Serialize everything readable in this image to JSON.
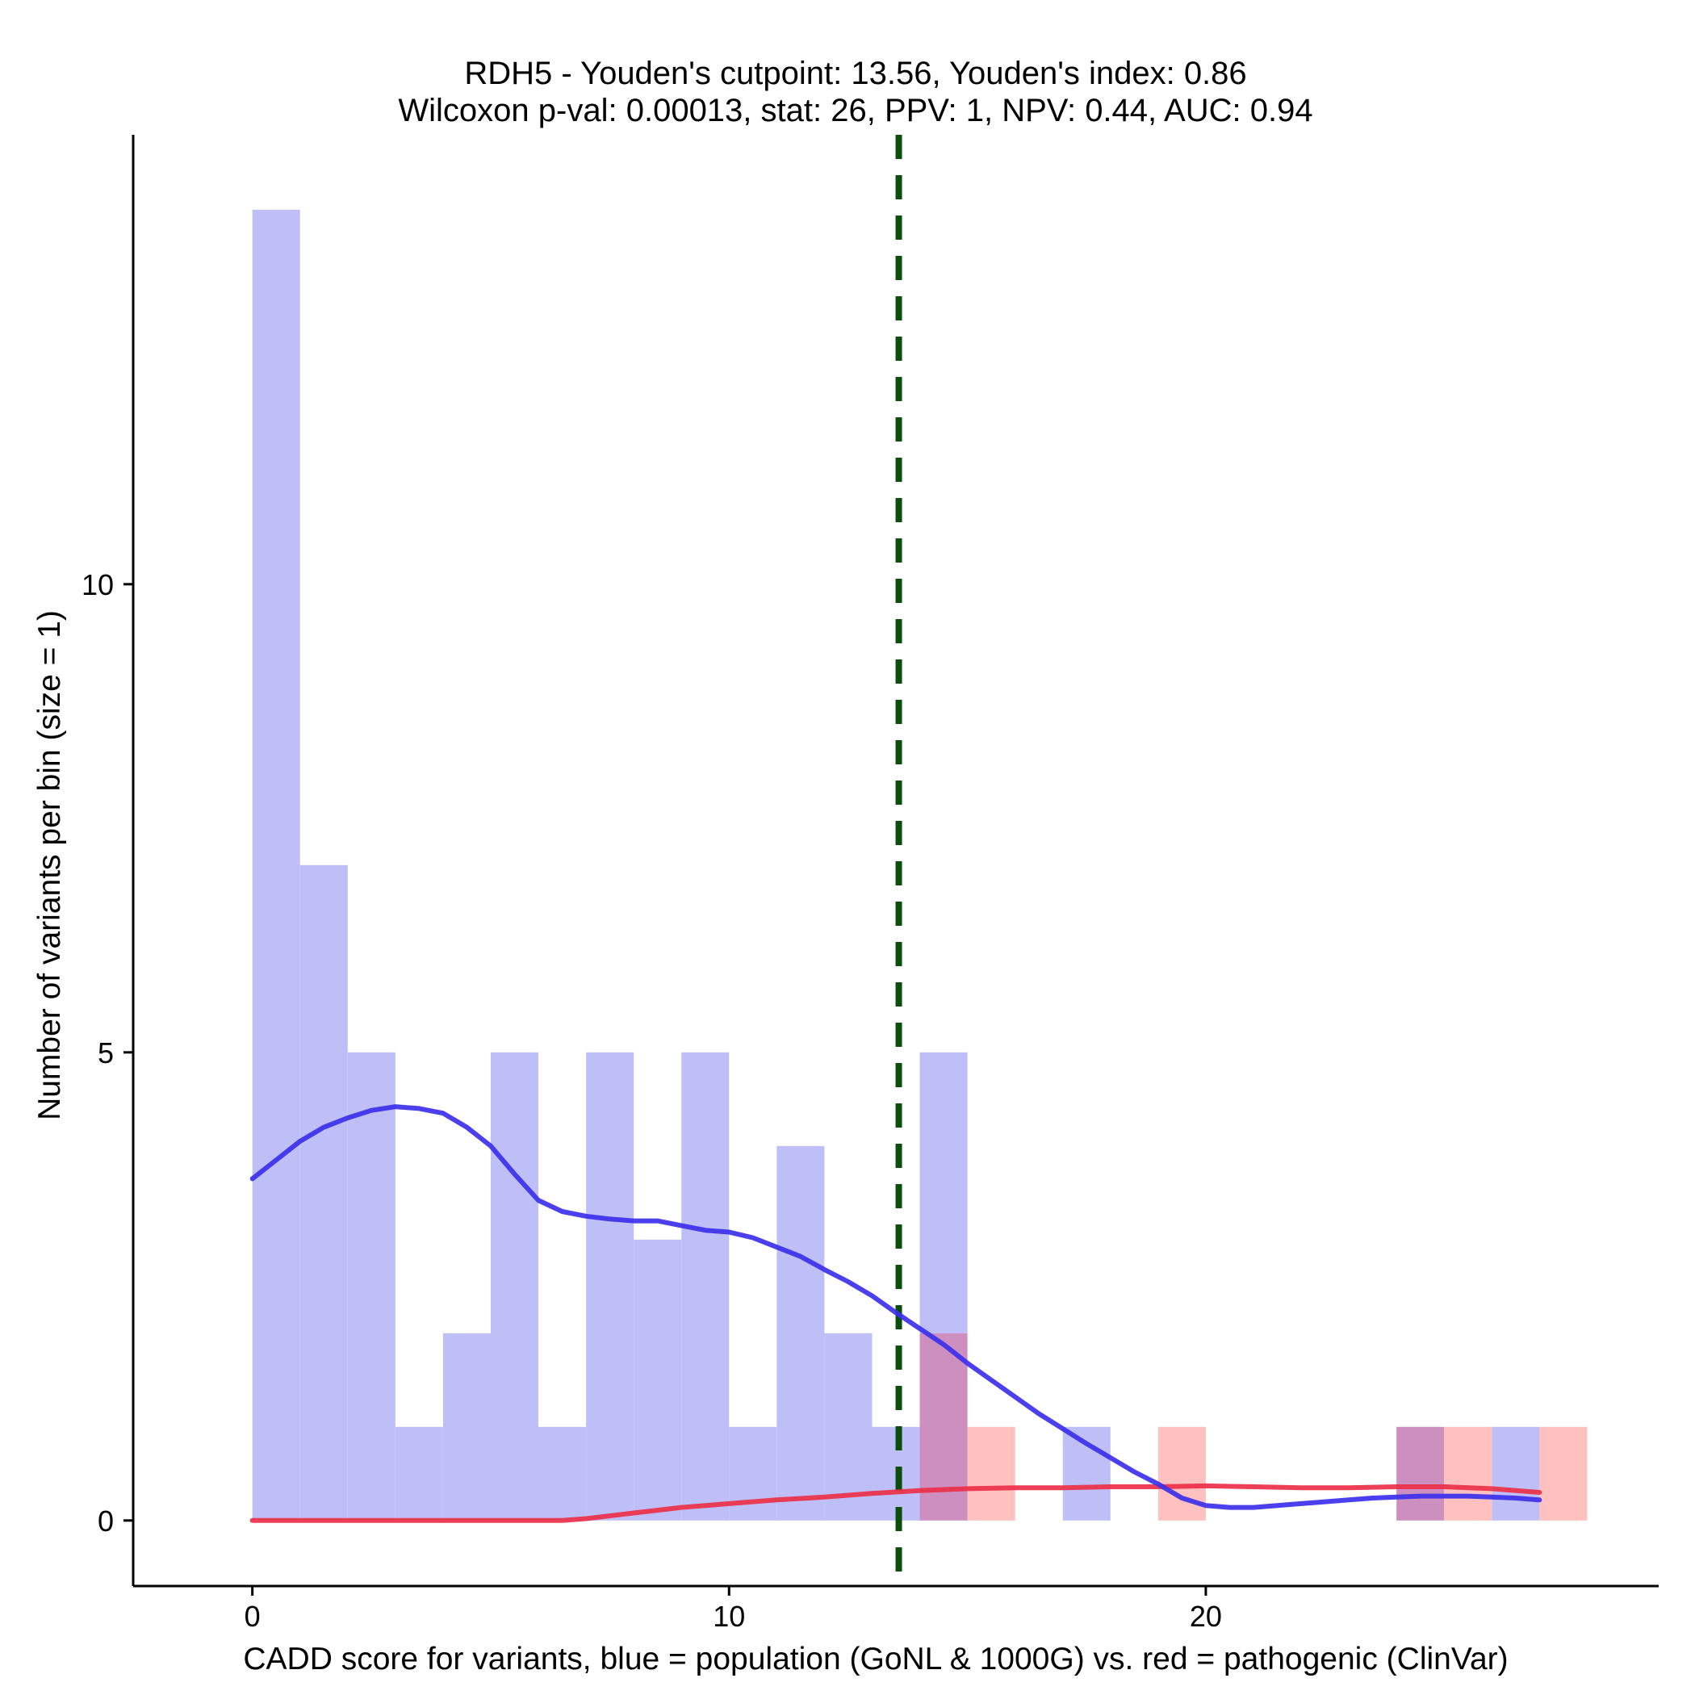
{
  "chart_data": {
    "type": "histogram",
    "title_line1": "RDH5 - Youden's cutpoint: 13.56, Youden's index: 0.86",
    "title_line2": "Wilcoxon p-val: 0.00013, stat: 26, PPV: 1, NPV: 0.44, AUC: 0.94",
    "xlabel": "CADD score for variants, blue = population (GoNL & 1000G) vs. red = pathogenic (ClinVar)",
    "ylabel": "Number of variants per bin (size = 1)",
    "xlim": [
      -2.5,
      29.5
    ],
    "ylim": [
      -0.7,
      14.8
    ],
    "x_ticks": [
      0,
      10,
      20
    ],
    "y_ticks": [
      0,
      5,
      10
    ],
    "bin_width": 1,
    "cutpoint": 13.56,
    "colors": {
      "population_bar": "#bfbff8",
      "pathogenic_bar": "#ffc0c0",
      "overlap_bar": "#cc8fc0",
      "population_line": "#3b30ec",
      "pathogenic_line": "#ec3048",
      "cutpoint_line": "#0b4d0b"
    },
    "series": [
      {
        "name": "population (GoNL & 1000G)",
        "bins": [
          {
            "start": 0,
            "count": 14
          },
          {
            "start": 1,
            "count": 7
          },
          {
            "start": 2,
            "count": 5
          },
          {
            "start": 3,
            "count": 1
          },
          {
            "start": 4,
            "count": 2
          },
          {
            "start": 5,
            "count": 5
          },
          {
            "start": 6,
            "count": 1
          },
          {
            "start": 7,
            "count": 5
          },
          {
            "start": 8,
            "count": 3
          },
          {
            "start": 9,
            "count": 5
          },
          {
            "start": 10,
            "count": 1
          },
          {
            "start": 11,
            "count": 4
          },
          {
            "start": 12,
            "count": 2
          },
          {
            "start": 13,
            "count": 1
          },
          {
            "start": 14,
            "count": 5
          },
          {
            "start": 17,
            "count": 1
          },
          {
            "start": 24,
            "count": 1
          },
          {
            "start": 26,
            "count": 1
          }
        ],
        "density_x": [
          0,
          0.5,
          1,
          1.5,
          2,
          2.5,
          3,
          3.5,
          4,
          4.5,
          5,
          5.5,
          6,
          6.5,
          7,
          7.5,
          8,
          8.5,
          9,
          9.5,
          10,
          10.5,
          11,
          11.5,
          12,
          12.5,
          13,
          13.5,
          14,
          14.5,
          15,
          15.5,
          16,
          16.5,
          17,
          17.5,
          18,
          18.5,
          19,
          19.5,
          20,
          20.5,
          21,
          21.5,
          22,
          22.5,
          23,
          23.5,
          24,
          24.5,
          25,
          25.5,
          26,
          26.5,
          27
        ],
        "density_y": [
          3.65,
          3.85,
          4.05,
          4.2,
          4.3,
          4.38,
          4.42,
          4.4,
          4.35,
          4.2,
          4.0,
          3.7,
          3.42,
          3.3,
          3.25,
          3.22,
          3.2,
          3.2,
          3.15,
          3.1,
          3.08,
          3.02,
          2.92,
          2.82,
          2.68,
          2.55,
          2.4,
          2.22,
          2.05,
          1.88,
          1.68,
          1.5,
          1.32,
          1.14,
          0.98,
          0.82,
          0.67,
          0.52,
          0.39,
          0.24,
          0.16,
          0.14,
          0.14,
          0.16,
          0.18,
          0.2,
          0.22,
          0.24,
          0.25,
          0.26,
          0.26,
          0.26,
          0.25,
          0.24,
          0.22
        ]
      },
      {
        "name": "pathogenic (ClinVar)",
        "bins": [
          {
            "start": 14,
            "count": 2
          },
          {
            "start": 15,
            "count": 1
          },
          {
            "start": 19,
            "count": 1
          },
          {
            "start": 24,
            "count": 1
          },
          {
            "start": 25,
            "count": 1
          },
          {
            "start": 27,
            "count": 1
          }
        ],
        "density_x": [
          0,
          1,
          2,
          3,
          4,
          5,
          6,
          6.5,
          7,
          8,
          9,
          10,
          11,
          12,
          13,
          14,
          15,
          16,
          17,
          18,
          19,
          20,
          21,
          22,
          23,
          24,
          25,
          26,
          27
        ],
        "density_y": [
          0,
          0,
          0,
          0,
          0,
          0,
          0,
          0,
          0.02,
          0.08,
          0.14,
          0.18,
          0.22,
          0.25,
          0.29,
          0.32,
          0.34,
          0.35,
          0.35,
          0.36,
          0.36,
          0.37,
          0.36,
          0.35,
          0.35,
          0.36,
          0.36,
          0.34,
          0.3
        ]
      }
    ]
  }
}
